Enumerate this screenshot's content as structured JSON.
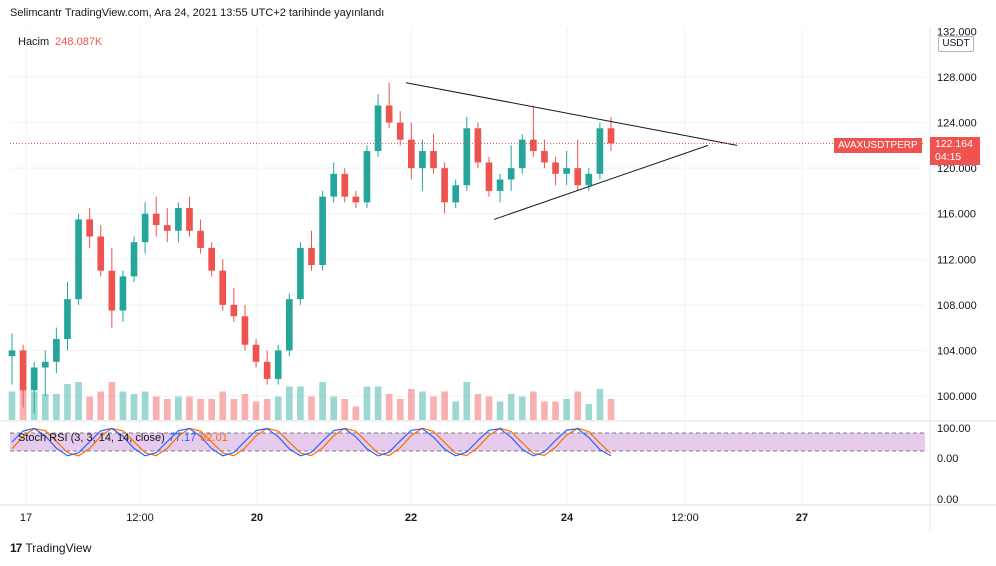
{
  "header": {
    "published_by": "Selimcantr TradingView.com, Ara 24, 2021 13:55 UTC+2 tarihinde yayınlandı"
  },
  "volume_legend": {
    "label": "Hacim",
    "value": "248.087K"
  },
  "stoch_legend": {
    "label": "Stoch RSI (3, 3, 14, 14, close)",
    "k_value": "77.17",
    "d_value": "82.01"
  },
  "price_scale": {
    "currency": "USDT",
    "ticks": [
      "132.000",
      "128.000",
      "124.000",
      "120.000",
      "116.000",
      "112.000",
      "108.000",
      "104.000",
      "100.000"
    ],
    "indicator_ticks": [
      "100.00",
      "0.00",
      "0.00"
    ]
  },
  "symbol": {
    "name": "AVAXUSDTPERP",
    "last_price": "122.164",
    "countdown": "04:15"
  },
  "time_axis": {
    "labels": [
      "17",
      "12:00",
      "20",
      "22",
      "24",
      "12:00",
      "27"
    ]
  },
  "footer": {
    "brand": "TradingView",
    "logo_glyph": "17"
  },
  "colors": {
    "up": "#26a69a",
    "down": "#ef5350",
    "stoch_k": "#2962ff",
    "stoch_d": "#ff6d00",
    "stoch_band": "#e1bee7"
  },
  "chart_data": {
    "type": "candlestick",
    "symbol": "AVAXUSDTPERP",
    "ylim": [
      98,
      132
    ],
    "last_price": 122.164,
    "candles": [
      [
        103.5,
        105.5,
        101.0,
        104.0
      ],
      [
        104.0,
        104.5,
        99.0,
        100.5
      ],
      [
        100.5,
        103.0,
        98.5,
        102.5
      ],
      [
        102.5,
        104.0,
        100.0,
        103.0
      ],
      [
        103.0,
        106.0,
        102.0,
        105.0
      ],
      [
        105.0,
        110.0,
        104.0,
        108.5
      ],
      [
        108.5,
        116.0,
        108.0,
        115.5
      ],
      [
        115.5,
        116.5,
        113.0,
        114.0
      ],
      [
        114.0,
        115.0,
        110.5,
        111.0
      ],
      [
        111.0,
        113.0,
        106.0,
        107.5
      ],
      [
        107.5,
        111.0,
        106.5,
        110.5
      ],
      [
        110.5,
        114.0,
        110.0,
        113.5
      ],
      [
        113.5,
        117.0,
        112.5,
        116.0
      ],
      [
        116.0,
        117.5,
        114.0,
        115.0
      ],
      [
        115.0,
        116.5,
        113.5,
        114.5
      ],
      [
        114.5,
        117.0,
        113.5,
        116.5
      ],
      [
        116.5,
        117.5,
        114.0,
        114.5
      ],
      [
        114.5,
        115.5,
        112.5,
        113.0
      ],
      [
        113.0,
        113.5,
        110.5,
        111.0
      ],
      [
        111.0,
        112.0,
        107.5,
        108.0
      ],
      [
        108.0,
        109.5,
        106.5,
        107.0
      ],
      [
        107.0,
        108.0,
        104.0,
        104.5
      ],
      [
        104.5,
        105.0,
        102.5,
        103.0
      ],
      [
        103.0,
        104.0,
        101.0,
        101.5
      ],
      [
        101.5,
        104.5,
        101.0,
        104.0
      ],
      [
        104.0,
        109.0,
        103.5,
        108.5
      ],
      [
        108.5,
        113.5,
        108.0,
        113.0
      ],
      [
        113.0,
        114.5,
        111.0,
        111.5
      ],
      [
        111.5,
        118.0,
        111.0,
        117.5
      ],
      [
        117.5,
        120.5,
        117.0,
        119.5
      ],
      [
        119.5,
        120.0,
        117.0,
        117.5
      ],
      [
        117.5,
        118.0,
        116.5,
        117.0
      ],
      [
        117.0,
        122.0,
        116.5,
        121.5
      ],
      [
        121.5,
        126.5,
        121.0,
        125.5
      ],
      [
        125.5,
        127.5,
        123.5,
        124.0
      ],
      [
        124.0,
        125.0,
        122.0,
        122.5
      ],
      [
        122.5,
        124.0,
        119.0,
        120.0
      ],
      [
        120.0,
        122.5,
        118.0,
        121.5
      ],
      [
        121.5,
        123.0,
        119.5,
        120.0
      ],
      [
        120.0,
        120.5,
        116.0,
        117.0
      ],
      [
        117.0,
        119.0,
        116.5,
        118.5
      ],
      [
        118.5,
        124.5,
        118.0,
        123.5
      ],
      [
        123.5,
        124.0,
        120.0,
        120.5
      ],
      [
        120.5,
        121.0,
        117.5,
        118.0
      ],
      [
        118.0,
        119.5,
        117.0,
        119.0
      ],
      [
        119.0,
        122.0,
        118.0,
        120.0
      ],
      [
        120.0,
        123.0,
        119.5,
        122.5
      ],
      [
        122.5,
        125.5,
        121.0,
        121.5
      ],
      [
        121.5,
        122.5,
        120.0,
        120.5
      ],
      [
        120.5,
        121.0,
        118.5,
        119.5
      ],
      [
        119.5,
        121.5,
        118.5,
        120.0
      ],
      [
        120.0,
        122.5,
        118.0,
        118.5
      ],
      [
        118.5,
        120.0,
        118.0,
        119.5
      ],
      [
        119.5,
        124.0,
        119.0,
        123.5
      ],
      [
        123.5,
        124.5,
        121.5,
        122.164
      ]
    ],
    "volume_note": "relative volume bars below price",
    "stoch_rsi": {
      "k": 77.17,
      "d": 82.01,
      "upper_band": 80,
      "lower_band": 20
    },
    "trendlines": [
      {
        "name": "triangle-upper",
        "from": [
          "Dec 22",
          127.5
        ],
        "to": [
          "Dec 25 18:00",
          122.0
        ]
      },
      {
        "name": "triangle-lower",
        "from": [
          "Dec 23",
          115.5
        ],
        "to": [
          "Dec 25 12:00",
          122.0
        ]
      }
    ],
    "x_labels": [
      "17",
      "12:00",
      "20",
      "22",
      "24",
      "12:00",
      "27"
    ],
    "grid": true
  }
}
